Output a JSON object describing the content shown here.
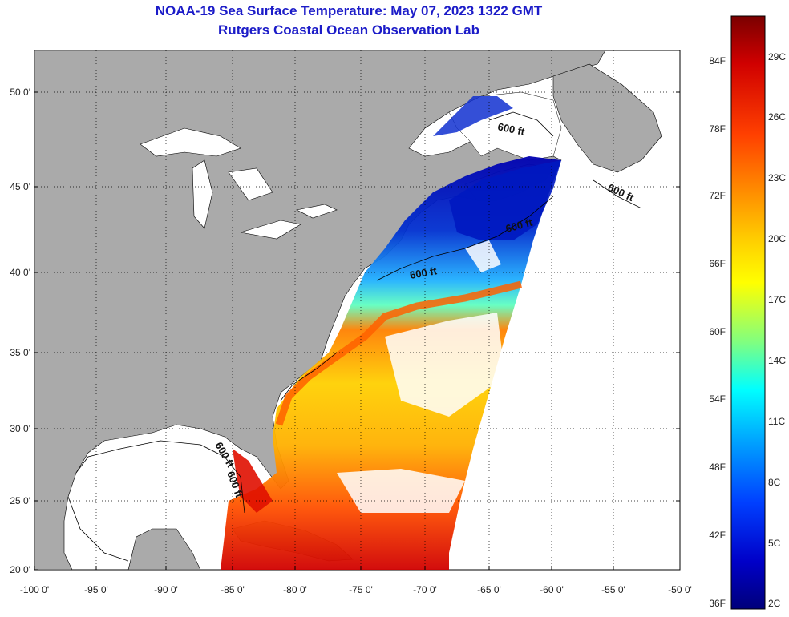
{
  "title": "NOAA-19 Sea Surface Temperature:  May 07, 2023 1322 GMT",
  "subtitle": "Rutgers Coastal Ocean Observation Lab",
  "lat_labels": [
    "50 0'",
    "45 0'",
    "40 0'",
    "35 0'",
    "30 0'",
    "25 0'",
    "20 0'"
  ],
  "lon_labels": [
    "-100 0'",
    "-95 0'",
    "-90 0'",
    "-85 0'",
    "-80 0'",
    "-75 0'",
    "-70 0'",
    "-65 0'",
    "-60 0'",
    "-55 0'",
    "-50 0'"
  ],
  "colorbar": {
    "f_labels": [
      "84F",
      "78F",
      "72F",
      "66F",
      "60F",
      "54F",
      "48F",
      "42F",
      "36F"
    ],
    "c_labels": [
      "29C",
      "26C",
      "23C",
      "20C",
      "17C",
      "14C",
      "11C",
      "8C",
      "5C",
      "2C"
    ],
    "colors": [
      "#7a0000",
      "#c80000",
      "#ff3000",
      "#ff8000",
      "#ffc000",
      "#ffff00",
      "#80ff60",
      "#00ffff",
      "#00a0ff",
      "#0040ff",
      "#0000c0",
      "#000080"
    ]
  },
  "contour_label": "600 ft",
  "colors": {
    "land": "#aaaaaa",
    "no_data": "#ffffff",
    "title": "#1c1cc8"
  }
}
